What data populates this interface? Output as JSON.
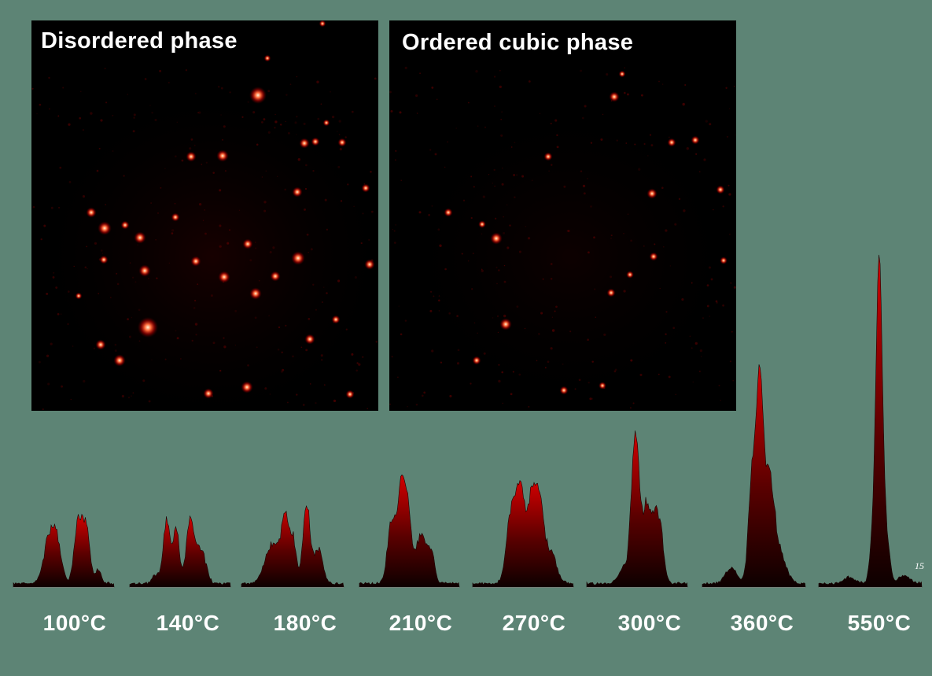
{
  "panels": {
    "left_title": "Disordered phase",
    "right_title": "Ordered cubic phase"
  },
  "temperatures": [
    "100°C",
    "140°C",
    "180°C",
    "210°C",
    "270°C",
    "300°C",
    "360°C",
    "550°C"
  ],
  "scale_mark": "15",
  "colors": {
    "background": "#5d8475",
    "panel_bg": "#000000",
    "peak_dark": "#1a0000",
    "peak_red": "#c40000",
    "spot_hot": "#fff4d0"
  }
}
